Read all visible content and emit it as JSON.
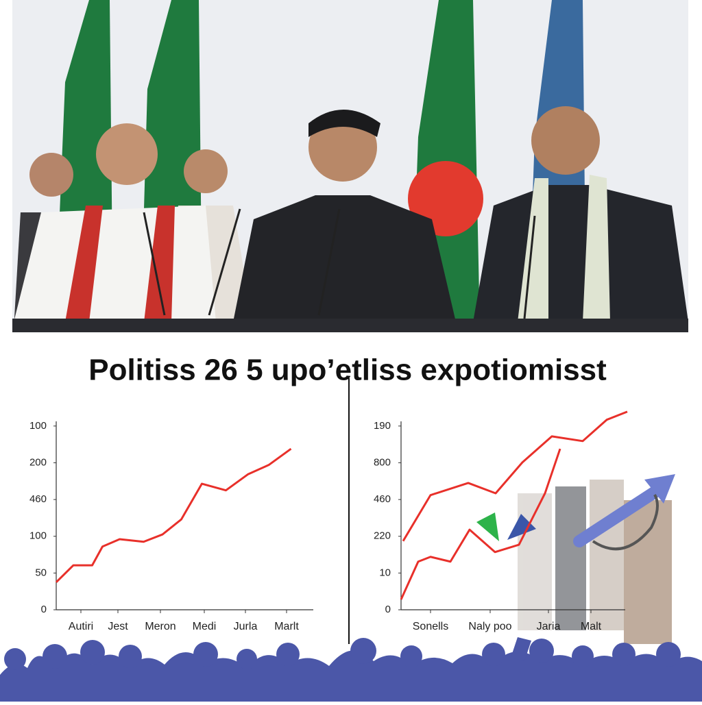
{
  "title": "Politiss 26 5 upo’etliss expotiomisst",
  "chart_data": [
    {
      "type": "line",
      "xlim": [
        0,
        7.5
      ],
      "xticks": [
        {
          "value": 0.72,
          "label": "Autiri"
        },
        {
          "value": 1.8,
          "label": "Jest"
        },
        {
          "value": 3.04,
          "label": "Meron"
        },
        {
          "value": 4.32,
          "label": "Medi"
        },
        {
          "value": 5.52,
          "label": "Jurla"
        },
        {
          "value": 6.72,
          "label": "Marlt"
        }
      ],
      "ylim": [
        0,
        5.5
      ],
      "yticks": [
        {
          "value": 0,
          "label": "0"
        },
        {
          "value": 1,
          "label": "50"
        },
        {
          "value": 2,
          "label": "100"
        },
        {
          "value": 3,
          "label": "460"
        },
        {
          "value": 4,
          "label": "200"
        },
        {
          "value": 5,
          "label": "100"
        }
      ],
      "series": [
        {
          "color": "#e8302a",
          "x": [
            0,
            0.5,
            1.05,
            1.35,
            1.85,
            2.55,
            3.1,
            3.65,
            4.25,
            4.95,
            5.6,
            6.2,
            6.85
          ],
          "values": [
            0.75,
            1.21,
            1.21,
            1.72,
            1.92,
            1.85,
            2.05,
            2.46,
            3.43,
            3.25,
            3.69,
            3.94,
            4.38
          ]
        }
      ]
    },
    {
      "type": "line",
      "xlim": [
        0,
        6.54
      ],
      "xticks": [
        {
          "value": 0.86,
          "label": "Sonells"
        },
        {
          "value": 2.6,
          "label": "Naly poo"
        },
        {
          "value": 4.3,
          "label": "Jaria"
        },
        {
          "value": 5.54,
          "label": "Malt"
        }
      ],
      "ylim": [
        0,
        5.5
      ],
      "yticks": [
        {
          "value": 0,
          "label": "0"
        },
        {
          "value": 1,
          "label": "10"
        },
        {
          "value": 2,
          "label": "220"
        },
        {
          "value": 3,
          "label": "460"
        },
        {
          "value": 4,
          "label": "800"
        },
        {
          "value": 5,
          "label": "190"
        }
      ],
      "series": [
        {
          "color": "#e8302a",
          "x": [
            0.06,
            0.86,
            1.96,
            2.76,
            3.54,
            4.4,
            5.3,
            6.0,
            6.6
          ],
          "values": [
            1.87,
            3.12,
            3.45,
            3.17,
            4.01,
            4.72,
            4.59,
            5.17,
            5.39
          ]
        },
        {
          "color": "#e8302a",
          "x": [
            0,
            0.5,
            0.86,
            1.44,
            2.0,
            2.74,
            3.44,
            4.2,
            4.64
          ],
          "values": [
            0.28,
            1.31,
            1.44,
            1.31,
            2.18,
            1.57,
            1.77,
            3.17,
            4.38
          ]
        }
      ]
    }
  ]
}
